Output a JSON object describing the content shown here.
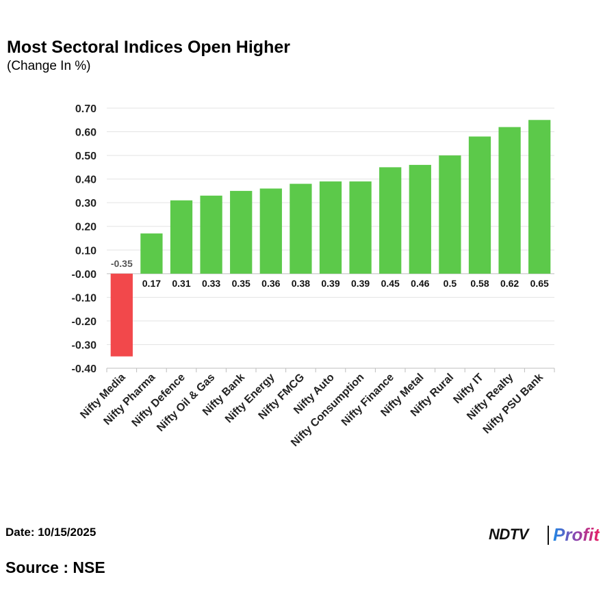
{
  "chart_data": {
    "type": "bar",
    "title": "Most Sectoral Indices Open Higher",
    "subtitle": "(Change In %)",
    "categories": [
      "Nifty Media",
      "Nifty Pharma",
      "Nifty Defence",
      "Nifty Oil & Gas",
      "Nifty Bank",
      "Nifty Energy",
      "Nifty FMCG",
      "Nifty Auto",
      "Nifty Consumption",
      "Nifty Finance",
      "Nifty Metal",
      "Nifty Rural",
      "Nifty IT",
      "Nifty Realty",
      "Nifty PSU Bank"
    ],
    "values": [
      -0.35,
      0.17,
      0.31,
      0.33,
      0.35,
      0.36,
      0.38,
      0.39,
      0.39,
      0.45,
      0.46,
      0.5,
      0.58,
      0.62,
      0.65
    ],
    "data_labels": [
      "-0.35",
      "0.17",
      "0.31",
      "0.33",
      "0.35",
      "0.36",
      "0.38",
      "0.39",
      "0.39",
      "0.45",
      "0.46",
      "0.5",
      "0.58",
      "0.62",
      "0.65"
    ],
    "yticks": [
      "0.70",
      "0.60",
      "0.50",
      "0.40",
      "0.30",
      "0.20",
      "0.10",
      "-0.00",
      "-0.10",
      "-0.20",
      "-0.30",
      "-0.40"
    ],
    "ylim": [
      -0.4,
      0.7
    ],
    "grid": true,
    "colors": {
      "positive": "#5cc94a",
      "negative": "#f2484b"
    }
  },
  "footer": {
    "date": "Date: 10/15/2025",
    "source": "Source : NSE",
    "logo_ndtv": "NDTV",
    "logo_profit": "Profit"
  }
}
